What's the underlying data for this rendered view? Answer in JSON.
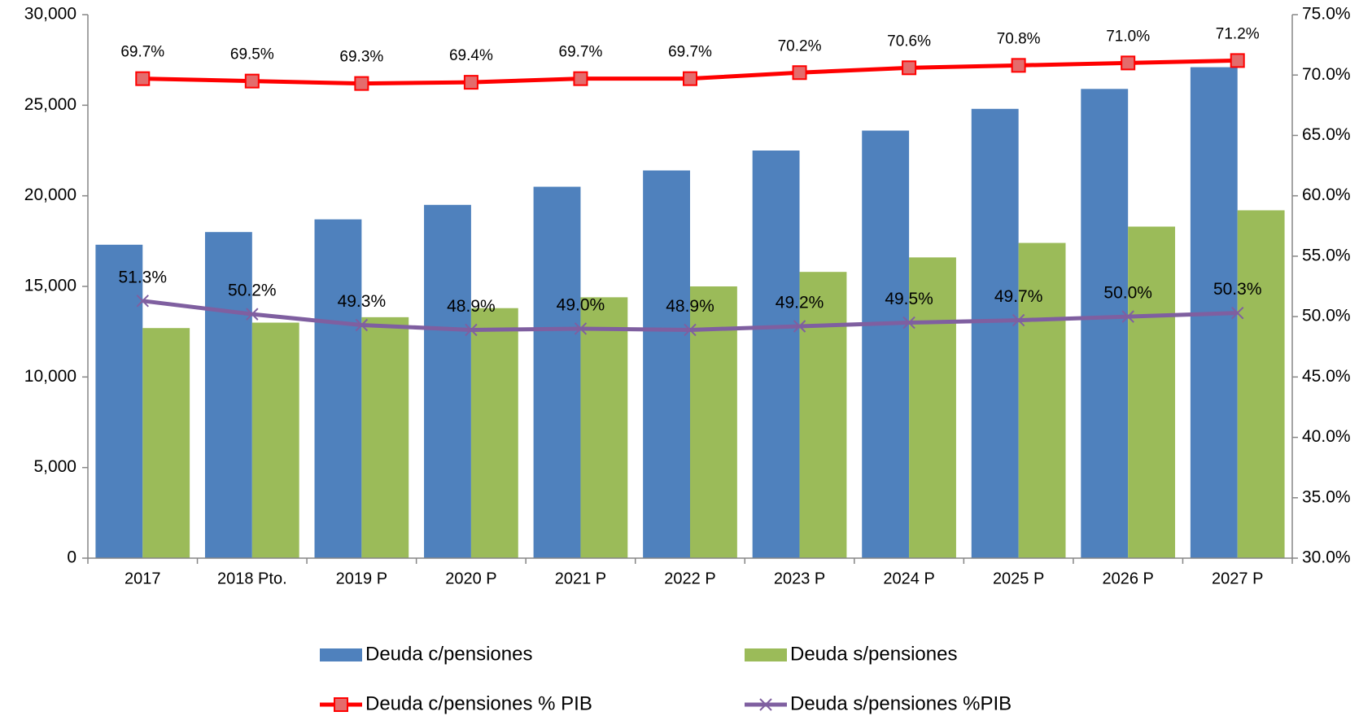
{
  "chart_data": {
    "type": "bar",
    "categories": [
      "2017",
      "2018 Pto.",
      "2019 P",
      "2020 P",
      "2021 P",
      "2022 P",
      "2023 P",
      "2024 P",
      "2025 P",
      "2026 P",
      "2027 P"
    ],
    "series": [
      {
        "name": "Deuda c/pensiones",
        "type": "bar",
        "color": "#4f81bd",
        "values": [
          17300,
          18000,
          18700,
          19500,
          20500,
          21400,
          22500,
          23600,
          24800,
          25900,
          27100
        ]
      },
      {
        "name": "Deuda s/pensiones",
        "type": "bar",
        "color": "#9bbb59",
        "values": [
          12700,
          13000,
          13300,
          13800,
          14400,
          15000,
          15800,
          16600,
          17400,
          18300,
          19200
        ]
      },
      {
        "name": "Deuda c/pensiones % PIB",
        "type": "line",
        "axis": "y2",
        "color": "#ff0000",
        "marker": "square",
        "values": [
          69.7,
          69.5,
          69.3,
          69.4,
          69.7,
          69.7,
          70.2,
          70.6,
          70.8,
          71.0,
          71.2
        ],
        "value_labels": [
          "69.7%",
          "69.5%",
          "69.3%",
          "69.4%",
          "69.7%",
          "69.7%",
          "70.2%",
          "70.6%",
          "70.8%",
          "71.0%",
          "71.2%"
        ]
      },
      {
        "name": "Deuda s/pensiones %PIB",
        "type": "line",
        "axis": "y2",
        "color": "#7f5fa0",
        "marker": "x",
        "values": [
          51.3,
          50.2,
          49.3,
          48.9,
          49.0,
          48.9,
          49.2,
          49.5,
          49.7,
          50.0,
          50.3
        ],
        "value_labels": [
          "51.3%",
          "50.2%",
          "49.3%",
          "48.9%",
          "49.0%",
          "48.9%",
          "49.2%",
          "49.5%",
          "49.7%",
          "50.0%",
          "50.3%"
        ]
      }
    ],
    "ylim": [
      0,
      30000
    ],
    "yticks": [
      {
        "value": 0,
        "label": "0"
      },
      {
        "value": 5000,
        "label": "5,000"
      },
      {
        "value": 10000,
        "label": "10,000"
      },
      {
        "value": 15000,
        "label": "15,000"
      },
      {
        "value": 20000,
        "label": "20,000"
      },
      {
        "value": 25000,
        "label": "25,000"
      },
      {
        "value": 30000,
        "label": "30,000"
      }
    ],
    "y2lim": [
      30,
      75
    ],
    "y2ticks": [
      {
        "value": 30,
        "label": "30.0%"
      },
      {
        "value": 35,
        "label": "35.0%"
      },
      {
        "value": 40,
        "label": "40.0%"
      },
      {
        "value": 45,
        "label": "45.0%"
      },
      {
        "value": 50,
        "label": "50.0%"
      },
      {
        "value": 55,
        "label": "55.0%"
      },
      {
        "value": 60,
        "label": "60.0%"
      },
      {
        "value": 65,
        "label": "65.0%"
      },
      {
        "value": 70,
        "label": "70.0%"
      },
      {
        "value": 75,
        "label": "75.0%"
      }
    ],
    "grid": false,
    "legend": "bottom"
  }
}
